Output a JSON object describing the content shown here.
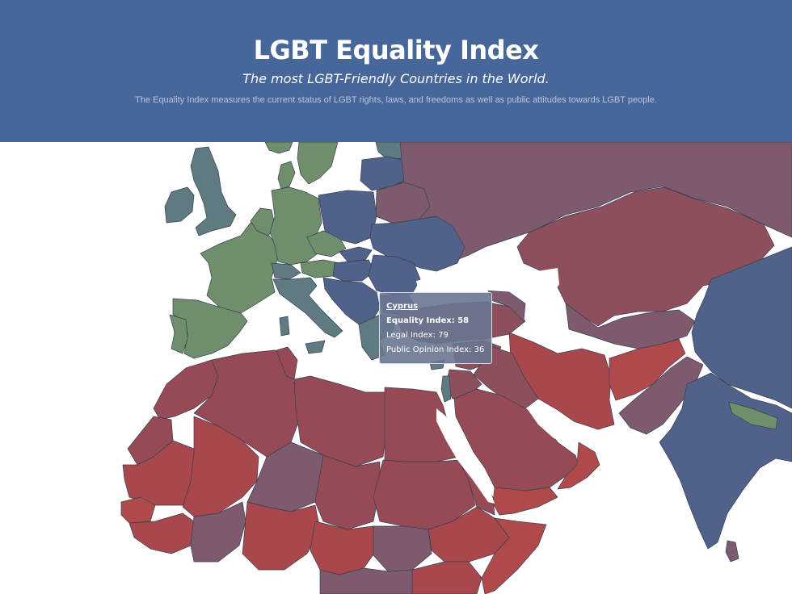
{
  "header": {
    "title": "LGBT Equality Index",
    "subtitle": "The most LGBT-Friendly Countries in the World.",
    "description": "The Equality Index measures the current status of LGBT rights, laws, and freedoms as well as public attitudes towards LGBT people."
  },
  "tooltip": {
    "country": "Cyprus",
    "equality_label": "Equality Index:",
    "equality_value": "58",
    "legal_label": "Legal Index:",
    "legal_value": "79",
    "opinion_label": "Public Opinion Index:",
    "opinion_value": "36"
  },
  "colors": {
    "header_background": "#47669a",
    "high_index": "#6f8f6c",
    "mid_index": "#56608a",
    "low_index": "#a0494e",
    "very_low_index": "#b04a4a"
  }
}
